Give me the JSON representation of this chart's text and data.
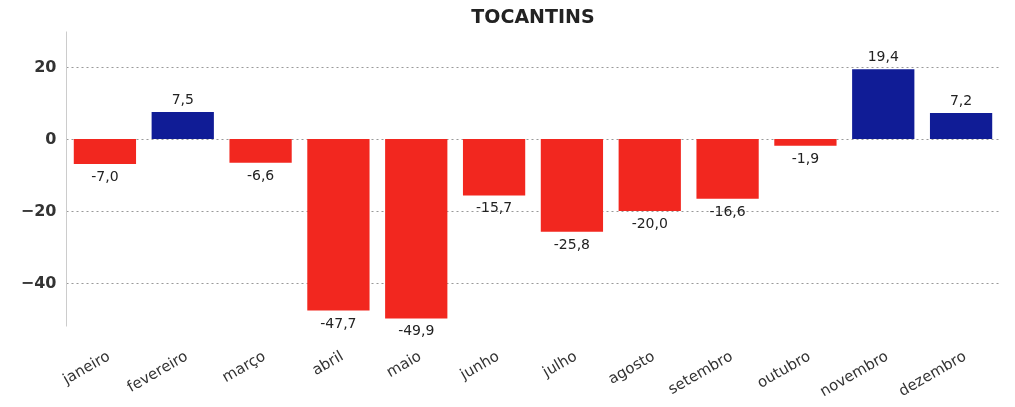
{
  "chart_data": {
    "type": "bar",
    "title": "TOCANTINS",
    "categories": [
      "janeiro",
      "fevereiro",
      "março",
      "abril",
      "maio",
      "junho",
      "julho",
      "agosto",
      "setembro",
      "outubro",
      "novembro",
      "dezembro"
    ],
    "values": [
      -7.0,
      7.5,
      -6.6,
      -47.7,
      -49.9,
      -15.7,
      -25.8,
      -20.0,
      -16.6,
      -1.9,
      19.4,
      7.2
    ],
    "colors": [
      "#f2271f",
      "#101c96",
      "#f2271f",
      "#f2271f",
      "#f2271f",
      "#f2271f",
      "#f2271f",
      "#f2271f",
      "#f2271f",
      "#f2271f",
      "#101c96",
      "#101c96"
    ],
    "value_labels": [
      "-7,0",
      "7,5",
      "-6,6",
      "-47,7",
      "-49,9",
      "-15,7",
      "-25,8",
      "-20,0",
      "-16,6",
      "-1,9",
      "19,4",
      "7,2"
    ],
    "ylim": [
      -52,
      30
    ],
    "yticks": [
      -40,
      -20,
      0,
      20
    ],
    "grid": "y"
  }
}
